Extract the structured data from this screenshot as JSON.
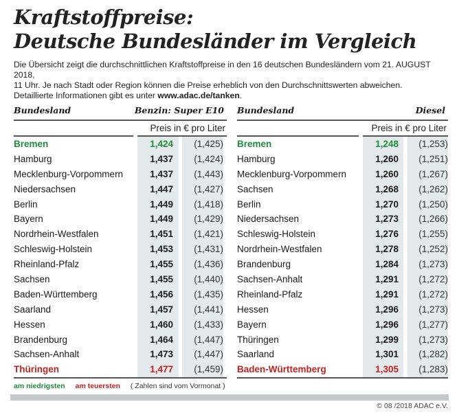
{
  "title_line1": "Kraftstoffpreise:",
  "title_line2": "Deutsche Bundesländer im Vergleich",
  "description_line1": "Die Übersicht zeigt die durchschnittlichen Kraftstoffpreise in den 16 deutschen Bundesländern vom 21. AUGUST 2018,",
  "description_line2": "11 Uhr. Je nach Stadt oder Region können die Preise erheblich von den Durchschnittswerten abweichen.",
  "description_line3": "Detaillierte Informationen gibt es unter ",
  "description_link": "www.adac.de/tanken",
  "description_end": ".",
  "colors": {
    "lowest": "#1f8c3b",
    "highest": "#c0221f",
    "column_shade": "#e4e9ec"
  },
  "tables": [
    {
      "col_header": "Bundesland",
      "fuel": "Benzin:  Super E10",
      "unit": "Preis in € pro Liter",
      "rows": [
        {
          "state": "Bremen",
          "price": "1,424",
          "prev": "(1,425)",
          "mark": "low"
        },
        {
          "state": "Hamburg",
          "price": "1,437",
          "prev": "(1,424)"
        },
        {
          "state": "Mecklenburg-Vorpommern",
          "price": "1,437",
          "prev": "(1,443)"
        },
        {
          "state": "Niedersachsen",
          "price": "1,447",
          "prev": "(1,427)"
        },
        {
          "state": "Berlin",
          "price": "1,449",
          "prev": "(1,418)"
        },
        {
          "state": "Bayern",
          "price": "1,449",
          "prev": "(1,429)"
        },
        {
          "state": "Nordrhein-Westfalen",
          "price": "1,451",
          "prev": "(1,421)"
        },
        {
          "state": "Schleswig-Holstein",
          "price": "1,453",
          "prev": "(1,431)"
        },
        {
          "state": "Rheinland-Pfalz",
          "price": "1,455",
          "prev": "(1,436)"
        },
        {
          "state": "Sachsen",
          "price": "1,455",
          "prev": "(1,440)"
        },
        {
          "state": "Baden-Württemberg",
          "price": "1,456",
          "prev": "(1,435)"
        },
        {
          "state": "Saarland",
          "price": "1,457",
          "prev": "(1,441)"
        },
        {
          "state": "Hessen",
          "price": "1,460",
          "prev": "(1,433)"
        },
        {
          "state": "Brandenburg",
          "price": "1,464",
          "prev": "(1,447)"
        },
        {
          "state": "Sachsen-Anhalt",
          "price": "1,473",
          "prev": "(1,447)"
        },
        {
          "state": "Thüringen",
          "price": "1,477",
          "prev": "(1,459)",
          "mark": "high"
        }
      ]
    },
    {
      "col_header": "Bundesland",
      "fuel": "Diesel",
      "unit": "Preis in € pro Liter",
      "rows": [
        {
          "state": "Bremen",
          "price": "1,248",
          "prev": "(1,253)",
          "mark": "low"
        },
        {
          "state": "Hamburg",
          "price": "1,260",
          "prev": "(1,251)"
        },
        {
          "state": "Mecklenburg-Vorpommern",
          "price": "1,260",
          "prev": "(1,267)"
        },
        {
          "state": "Sachsen",
          "price": "1,268",
          "prev": "(1,262)"
        },
        {
          "state": "Berlin",
          "price": "1,270",
          "prev": "(1,250)"
        },
        {
          "state": "Niedersachsen",
          "price": "1,273",
          "prev": "(1,266)"
        },
        {
          "state": "Schleswig-Holstein",
          "price": "1,276",
          "prev": "(1,255)"
        },
        {
          "state": "Nordrhein-Westfalen",
          "price": "1,278",
          "prev": "(1,252)"
        },
        {
          "state": "Brandenburg",
          "price": "1,284",
          "prev": "(1,273)"
        },
        {
          "state": "Sachsen-Anhalt",
          "price": "1,291",
          "prev": "(1,272)"
        },
        {
          "state": "Rheinland-Pfalz",
          "price": "1,291",
          "prev": "(1,272)"
        },
        {
          "state": "Hessen",
          "price": "1,296",
          "prev": "(1,273)"
        },
        {
          "state": "Bayern",
          "price": "1,296",
          "prev": "(1,277)"
        },
        {
          "state": "Thüringen",
          "price": "1,299",
          "prev": "(1,273)"
        },
        {
          "state": "Saarland",
          "price": "1,301",
          "prev": "(1,282)"
        },
        {
          "state": "Baden-Württemberg",
          "price": "1,305",
          "prev": "(1,283)",
          "mark": "high"
        }
      ]
    }
  ],
  "legend": {
    "lowest": "am niedrigsten",
    "highest": "am teuersten",
    "note": "( Zahlen sind vom Vormonat )"
  },
  "copyright": "© 08 /2018 ADAC e.V."
}
